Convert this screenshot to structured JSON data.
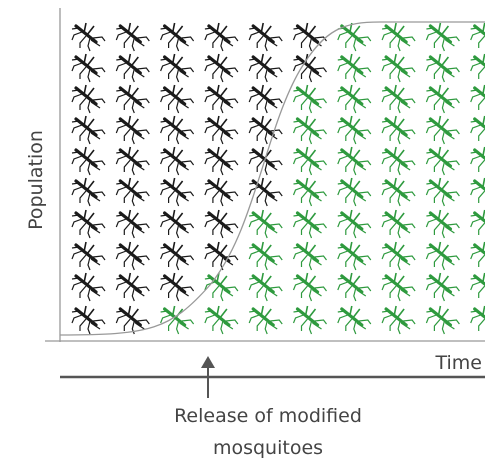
{
  "axes": {
    "y_label": "Population",
    "x_label": "Time"
  },
  "annotation": {
    "lines": [
      "Release of modified",
      "mosquitoes"
    ]
  }
}
